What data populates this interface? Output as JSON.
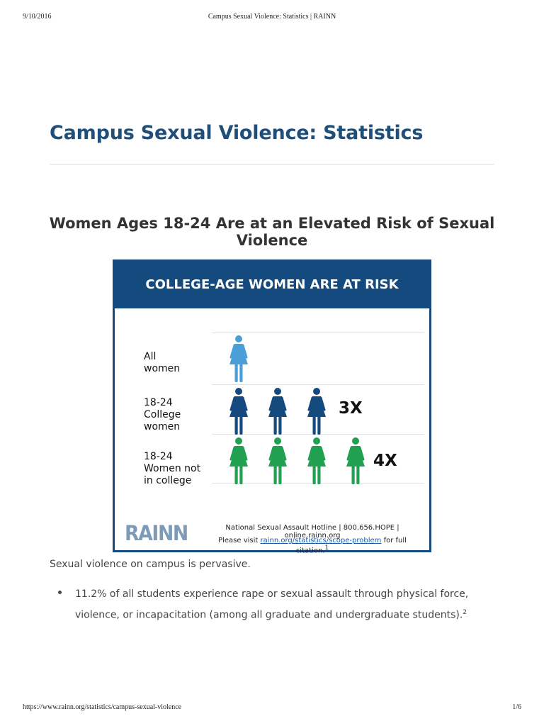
{
  "print_header": {
    "date": "9/10/2016",
    "title": "Campus Sexual Violence: Statistics | RAINN"
  },
  "print_footer": {
    "url": "https://www.rainn.org/statistics/campus-sexual-violence",
    "page": "1/6"
  },
  "page_title": "Campus Sexual Violence: Statistics",
  "section_heading": "Women Ages 18-24 Are at an Elevated Risk of Sexual Violence",
  "infographic": {
    "header": "COLLEGE-AGE WOMEN ARE AT RISK",
    "icon": "woman-figure-icon",
    "rows": [
      {
        "label": "All\nwomen",
        "figures": 1,
        "multiplier": "",
        "color": "#4a9fd8"
      },
      {
        "label": "18-24\nCollege\nwomen",
        "figures": 3,
        "multiplier": "3X",
        "color": "#154a7e"
      },
      {
        "label": "18-24\nWomen not\nin college",
        "figures": 4,
        "multiplier": "4X",
        "color": "#22a052"
      }
    ],
    "logo": "RAINN",
    "hotline": "National Sexual Assault Hotline | 800.656.HOPE | online.rainn.org",
    "citation_prefix": "Please visit ",
    "citation_link": "rainn.org/statistics/scope-problem",
    "citation_suffix": " for full citation.",
    "citation_ref": "1"
  },
  "intro": "Sexual violence on campus is pervasive.",
  "bullets": [
    {
      "text": "11.2% of all students experience rape or sexual assault through physical force, violence, or incapacitation (among all graduate and undergraduate students).",
      "ref": "2"
    }
  ]
}
